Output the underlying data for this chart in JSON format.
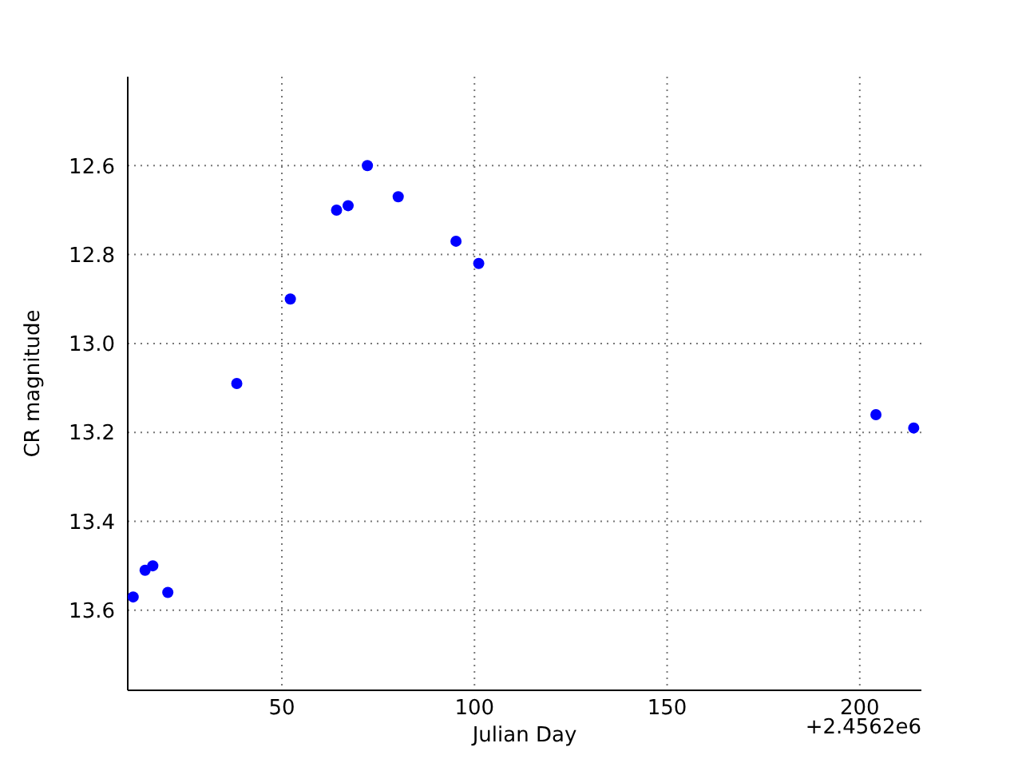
{
  "chart_data": {
    "type": "scatter",
    "xlabel": "Julian Day",
    "ylabel": "CR magnitude",
    "annotations": [
      "+2.4562e6"
    ],
    "series": [
      {
        "color": "#0000ff",
        "x": [
          11.4,
          14.5,
          16.5,
          20.4,
          38.3,
          52.2,
          64.2,
          67.2,
          72.2,
          80.2,
          95.2,
          101.1,
          204.2,
          214.0
        ],
        "values": [
          13.57,
          13.51,
          13.5,
          13.56,
          13.09,
          12.9,
          12.7,
          12.69,
          12.6,
          12.67,
          12.77,
          12.82,
          13.16,
          13.19
        ]
      }
    ],
    "xlim": [
      10,
      216
    ],
    "xticks": [
      50,
      100,
      150,
      200
    ],
    "ylim": [
      13.78,
      12.4
    ],
    "yticks": [
      {
        "value": 12.6,
        "label": "12.6"
      },
      {
        "value": 12.8,
        "label": "12.8"
      },
      {
        "value": 13,
        "label": "13.0"
      },
      {
        "value": 13.2,
        "label": "13.2"
      },
      {
        "value": 13.4,
        "label": "13.4"
      },
      {
        "value": 13.6,
        "label": "13.6"
      }
    ],
    "grid": true,
    "legend": false,
    "marker": "circle"
  }
}
